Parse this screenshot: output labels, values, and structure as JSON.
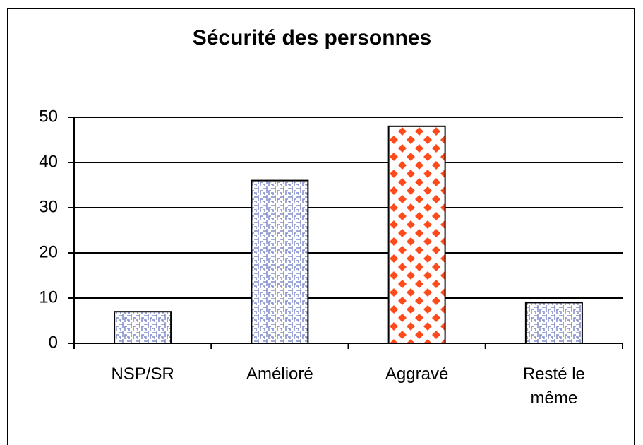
{
  "chart_data": {
    "type": "bar",
    "title": "Sécurité des personnes",
    "categories": [
      "NSP/SR",
      "Amélioré",
      "Aggravé",
      "Resté le même"
    ],
    "values": [
      7,
      36,
      48,
      9
    ],
    "colors": [
      "#7f8cc8",
      "#7f8cc8",
      "#ff4a1c",
      "#7f8cc8"
    ],
    "patterns": [
      "weave",
      "weave",
      "dots",
      "weave"
    ],
    "ylim": [
      0,
      50
    ],
    "yticks": [
      0,
      10,
      20,
      30,
      40,
      50
    ],
    "grid": true
  }
}
